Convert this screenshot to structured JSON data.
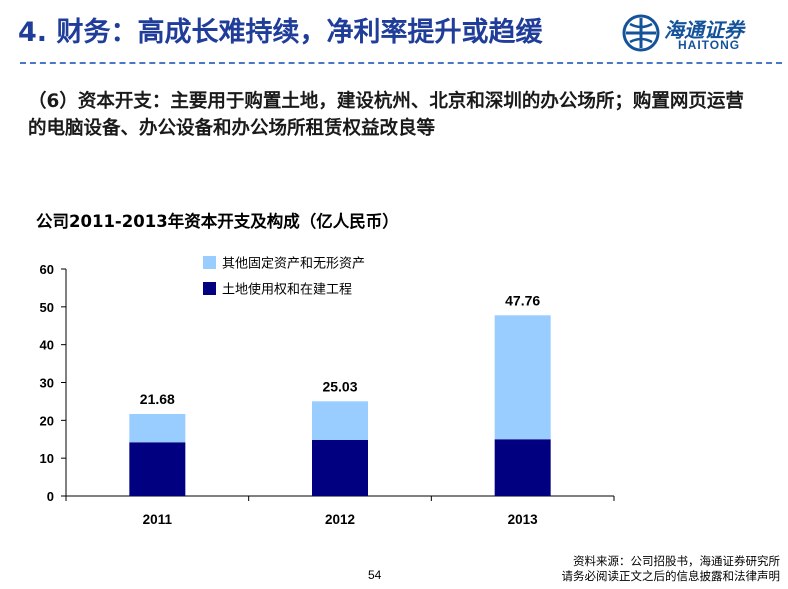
{
  "slide": {
    "title": "4. 财务：高成长难持续，净利率提升或趋缓",
    "bullet": "（6）资本开支：主要用于购置土地，建设杭州、北京和深圳的办公场所；购置网页运营的电脑设备、办公设备和办公场所租赁权益改良等",
    "page_number": "54",
    "source_line1": "资料来源：公司招股书，海通证券研究所",
    "source_line2": "请务必阅读正文之后的信息披露和法律声明"
  },
  "logo": {
    "cn": "海通证券",
    "en": "HAITONG",
    "color": "#14539a"
  },
  "colors": {
    "title": "#1f3d99",
    "rule": "#4a78c6",
    "series_land": "#000080",
    "series_other": "#99ccff"
  },
  "chart_data": {
    "type": "bar",
    "stacked": true,
    "title": "公司2011-2013年资本开支及构成（亿人民币）",
    "categories": [
      "2011",
      "2012",
      "2013"
    ],
    "series": [
      {
        "name": "土地使用权和在建工程",
        "values": [
          14.2,
          14.8,
          15.0
        ],
        "color": "#000080"
      },
      {
        "name": "其他固定资产和无形资产",
        "values": [
          7.48,
          10.23,
          32.76
        ],
        "color": "#99ccff"
      }
    ],
    "totals": [
      21.68,
      25.03,
      47.76
    ],
    "total_labels": [
      "21.68",
      "25.03",
      "47.76"
    ],
    "ylim": [
      0,
      60
    ],
    "yticks": [
      0,
      10,
      20,
      30,
      40,
      50,
      60
    ],
    "xlabel": "",
    "ylabel": "",
    "legend_position": "top-left",
    "grid": false
  }
}
